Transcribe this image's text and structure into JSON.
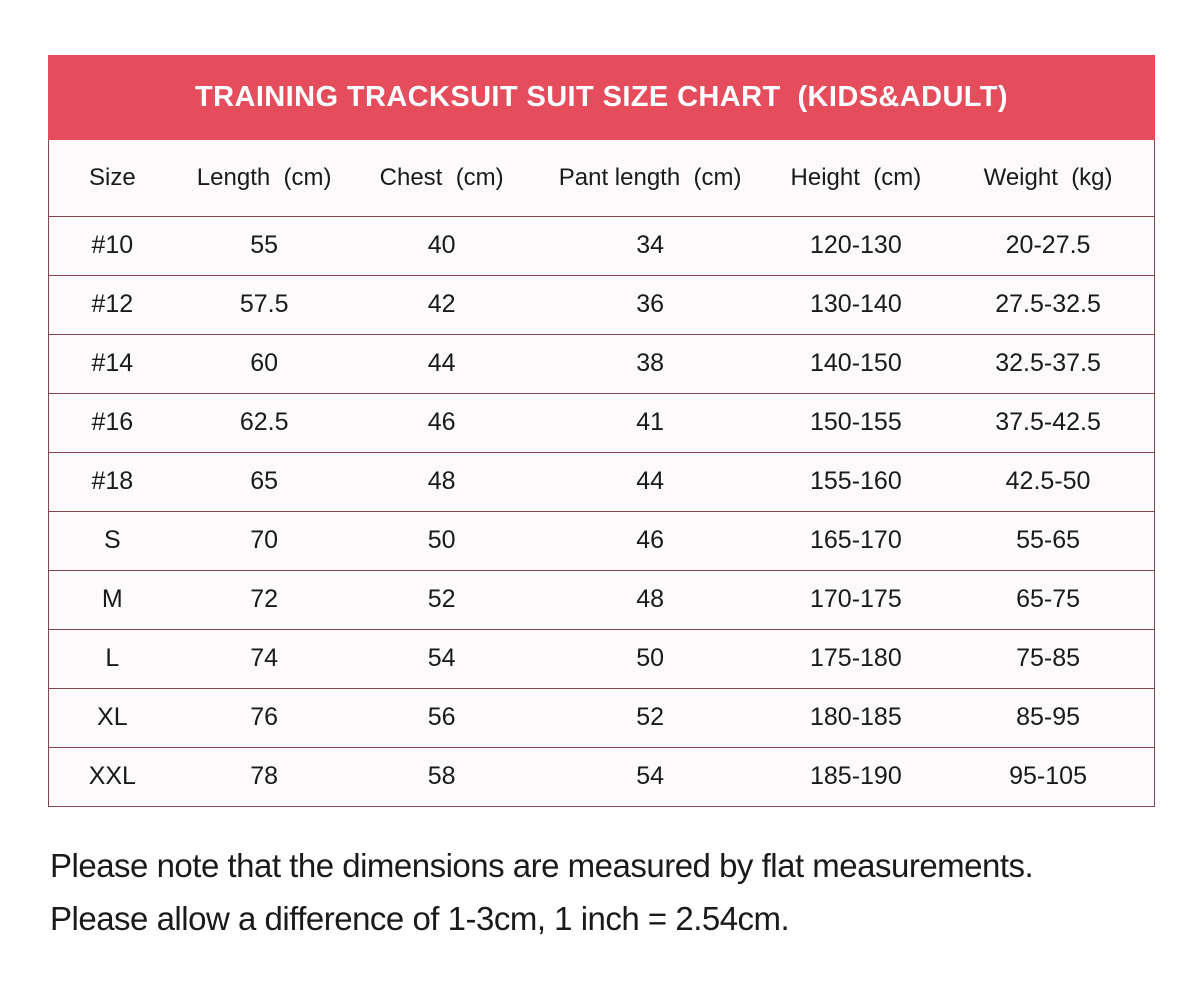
{
  "chart_data": {
    "type": "table",
    "title": "TRAINING TRACKSUIT SUIT SIZE CHART  (KIDS&ADULT)",
    "columns": [
      "Size",
      "Length  (cm)",
      "Chest  (cm)",
      "Pant length  (cm)",
      "Height  (cm)",
      "Weight  (kg)"
    ],
    "rows": [
      [
        "#10",
        "55",
        "40",
        "34",
        "120-130",
        "20-27.5"
      ],
      [
        "#12",
        "57.5",
        "42",
        "36",
        "130-140",
        "27.5-32.5"
      ],
      [
        "#14",
        "60",
        "44",
        "38",
        "140-150",
        "32.5-37.5"
      ],
      [
        "#16",
        "62.5",
        "46",
        "41",
        "150-155",
        "37.5-42.5"
      ],
      [
        "#18",
        "65",
        "48",
        "44",
        "155-160",
        "42.5-50"
      ],
      [
        "S",
        "70",
        "50",
        "46",
        "165-170",
        "55-65"
      ],
      [
        "M",
        "72",
        "52",
        "48",
        "170-175",
        "65-75"
      ],
      [
        "L",
        "74",
        "54",
        "50",
        "175-180",
        "75-85"
      ],
      [
        "XL",
        "76",
        "56",
        "52",
        "180-185",
        "85-95"
      ],
      [
        "XXL",
        "78",
        "58",
        "54",
        "185-190",
        "95-105"
      ]
    ],
    "layout": {
      "grid": "horizontal-rules-only",
      "legend": "none"
    }
  },
  "notes": {
    "line1": "Please note that the dimensions are measured by flat measurements.",
    "line2": "Please allow a difference of 1-3cm, 1 inch = 2.54cm."
  },
  "colors": {
    "header_bg": "#e54c5c",
    "table_border": "#84464e",
    "row_bg": "#fcfafa",
    "text": "#1a1a1a",
    "title_text": "#ffffff"
  }
}
